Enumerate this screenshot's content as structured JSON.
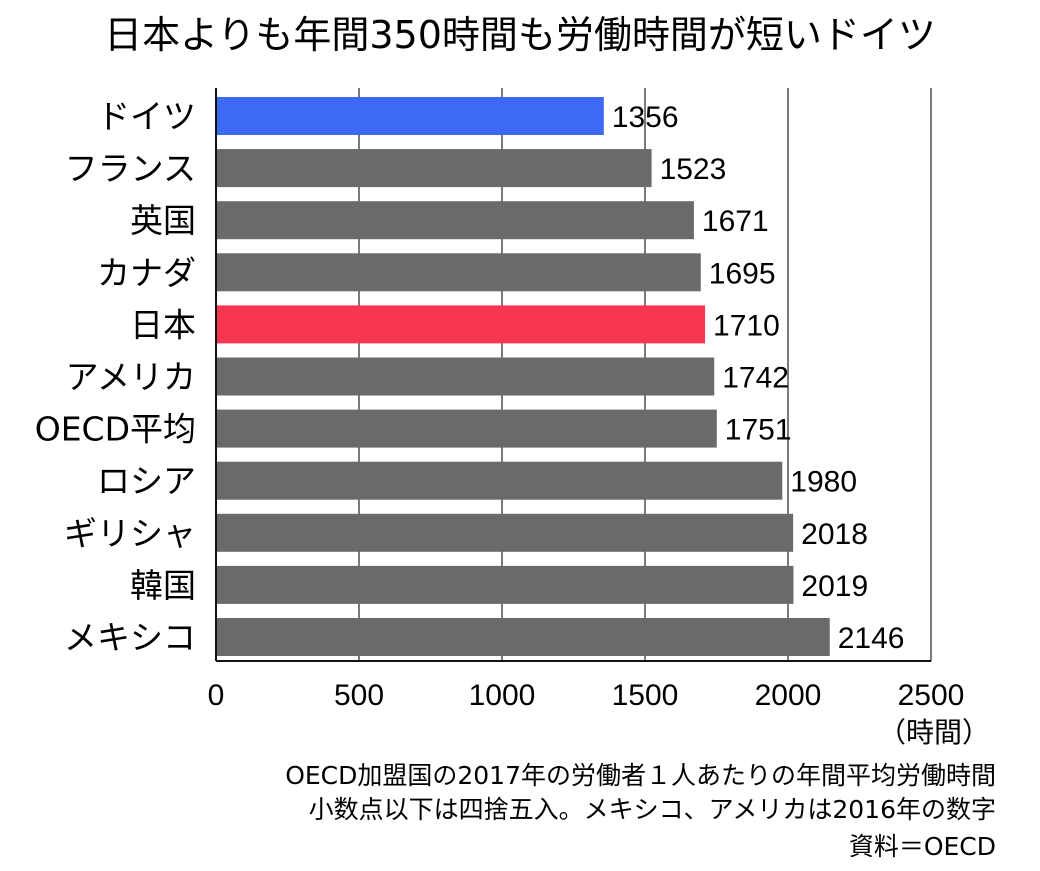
{
  "chart_data": {
    "type": "bar",
    "orientation": "horizontal",
    "title": "日本よりも年間350時間も労働時間が短いドイツ",
    "categories": [
      "ドイツ",
      "フランス",
      "英国",
      "カナダ",
      "日本",
      "アメリカ",
      "OECD平均",
      "ロシア",
      "ギリシャ",
      "韓国",
      "メキシコ"
    ],
    "values": [
      1356,
      1523,
      1671,
      1695,
      1710,
      1742,
      1751,
      1980,
      2018,
      2019,
      2146
    ],
    "value_labels": [
      "1356",
      "1523",
      "1671",
      "1695",
      "1710",
      "1742",
      "1751",
      "1980",
      "2018",
      "2019",
      "2146"
    ],
    "bar_colors": [
      "#3c6af5",
      "#6a6a6a",
      "#6a6a6a",
      "#6a6a6a",
      "#f7374f",
      "#6a6a6a",
      "#6a6a6a",
      "#6a6a6a",
      "#6a6a6a",
      "#6a6a6a",
      "#6a6a6a"
    ],
    "xlim": [
      0,
      2500
    ],
    "xticks": [
      0,
      500,
      1000,
      1500,
      2000,
      2500
    ],
    "xtick_labels": [
      "0",
      "500",
      "1000",
      "1500",
      "2000",
      "2500"
    ],
    "xlabel": "（時間）",
    "grid": true,
    "notes": [
      "OECD加盟国の2017年の労働者１人あたりの年間平均労働時間",
      "小数点以下は四捨五入。メキシコ、アメリカは2016年の数字",
      "資料＝OECD"
    ]
  }
}
